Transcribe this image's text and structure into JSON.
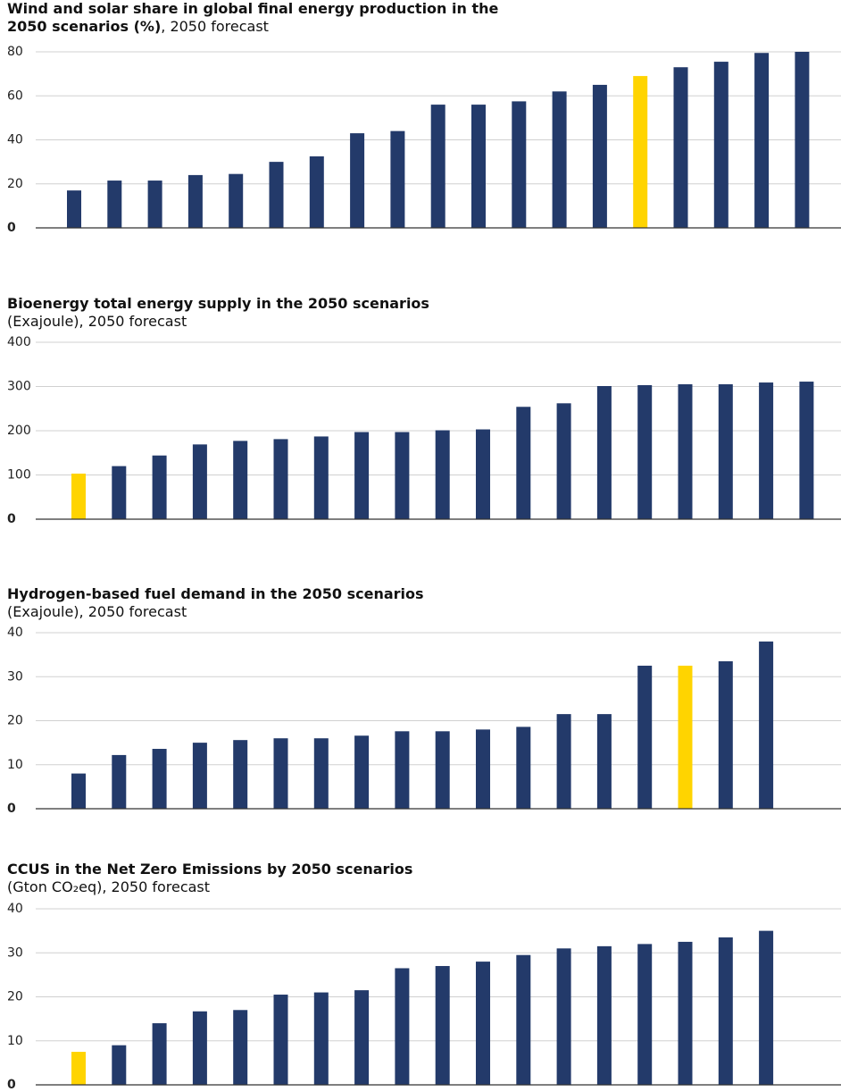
{
  "chart_data": [
    {
      "type": "bar",
      "title": "Wind and solar share in global final energy production in the 2050 scenarios (%)",
      "subtitle": ", 2050 forecast",
      "categories": [
        null,
        null,
        null,
        null,
        null,
        null,
        null,
        null,
        null,
        null,
        null,
        null,
        null,
        null,
        null,
        null,
        null,
        null,
        null
      ],
      "values": [
        17,
        21.5,
        21.5,
        24,
        24.5,
        30,
        32.5,
        43,
        44,
        56,
        56,
        57.5,
        62,
        65,
        69,
        73,
        75.5,
        79.5,
        80
      ],
      "colors": [
        "#233a6a",
        "#233a6a",
        "#233a6a",
        "#233a6a",
        "#233a6a",
        "#233a6a",
        "#233a6a",
        "#233a6a",
        "#233a6a",
        "#233a6a",
        "#233a6a",
        "#233a6a",
        "#233a6a",
        "#233a6a",
        "#ffd400",
        "#233a6a",
        "#233a6a",
        "#233a6a",
        "#233a6a"
      ],
      "ylim": [
        0,
        80
      ],
      "yticks": [
        0,
        20,
        40,
        60,
        80
      ],
      "grid": true
    },
    {
      "type": "bar",
      "title": "Bioenergy total energy supply in the 2050 scenarios",
      "subtitle": "(Exajoule), 2050 forecast",
      "categories": [
        null,
        null,
        null,
        null,
        null,
        null,
        null,
        null,
        null,
        null,
        null,
        null,
        null,
        null,
        null,
        null,
        null,
        null,
        null
      ],
      "values": [
        103,
        120,
        144,
        169,
        177,
        181,
        187,
        197,
        197,
        201,
        203,
        254,
        262,
        301,
        303,
        305,
        305,
        309,
        311
      ],
      "colors": [
        "#ffd400",
        "#233a6a",
        "#233a6a",
        "#233a6a",
        "#233a6a",
        "#233a6a",
        "#233a6a",
        "#233a6a",
        "#233a6a",
        "#233a6a",
        "#233a6a",
        "#233a6a",
        "#233a6a",
        "#233a6a",
        "#233a6a",
        "#233a6a",
        "#233a6a",
        "#233a6a",
        "#233a6a"
      ],
      "ylim": [
        0,
        400
      ],
      "yticks": [
        0,
        100,
        200,
        300,
        400
      ],
      "grid": true
    },
    {
      "type": "bar",
      "title": "Hydrogen-based fuel demand in the 2050 scenarios",
      "subtitle": "(Exajoule), 2050 forecast",
      "categories": [
        null,
        null,
        null,
        null,
        null,
        null,
        null,
        null,
        null,
        null,
        null,
        null,
        null,
        null,
        null,
        null,
        null,
        null
      ],
      "values": [
        8,
        12.2,
        13.6,
        15,
        15.6,
        16,
        16,
        16.6,
        17.6,
        17.6,
        18,
        18.6,
        21.5,
        21.5,
        32.5,
        32.5,
        33.5,
        38
      ],
      "colors": [
        "#233a6a",
        "#233a6a",
        "#233a6a",
        "#233a6a",
        "#233a6a",
        "#233a6a",
        "#233a6a",
        "#233a6a",
        "#233a6a",
        "#233a6a",
        "#233a6a",
        "#233a6a",
        "#233a6a",
        "#233a6a",
        "#233a6a",
        "#ffd400",
        "#233a6a",
        "#233a6a"
      ],
      "ylim": [
        0,
        40
      ],
      "yticks": [
        0,
        10,
        20,
        30,
        40
      ],
      "grid": true
    },
    {
      "type": "bar",
      "title": "CCUS in the Net Zero Emissions by 2050 scenarios",
      "subtitle": "(Gton CO₂eq), 2050 forecast",
      "categories": [
        null,
        null,
        null,
        null,
        null,
        null,
        null,
        null,
        null,
        null,
        null,
        null,
        null,
        null,
        null,
        null,
        null,
        null
      ],
      "values": [
        7.5,
        9,
        14,
        16.7,
        17,
        20.5,
        21,
        21.5,
        26.5,
        27,
        28,
        29.5,
        31,
        31.5,
        32,
        32.5,
        33.5,
        35
      ],
      "colors": [
        "#ffd400",
        "#233a6a",
        "#233a6a",
        "#233a6a",
        "#233a6a",
        "#233a6a",
        "#233a6a",
        "#233a6a",
        "#233a6a",
        "#233a6a",
        "#233a6a",
        "#233a6a",
        "#233a6a",
        "#233a6a",
        "#233a6a",
        "#233a6a",
        "#233a6a",
        "#233a6a"
      ],
      "ylim": [
        0,
        40
      ],
      "yticks": [
        0,
        10,
        20,
        30,
        40
      ],
      "grid": true
    }
  ]
}
